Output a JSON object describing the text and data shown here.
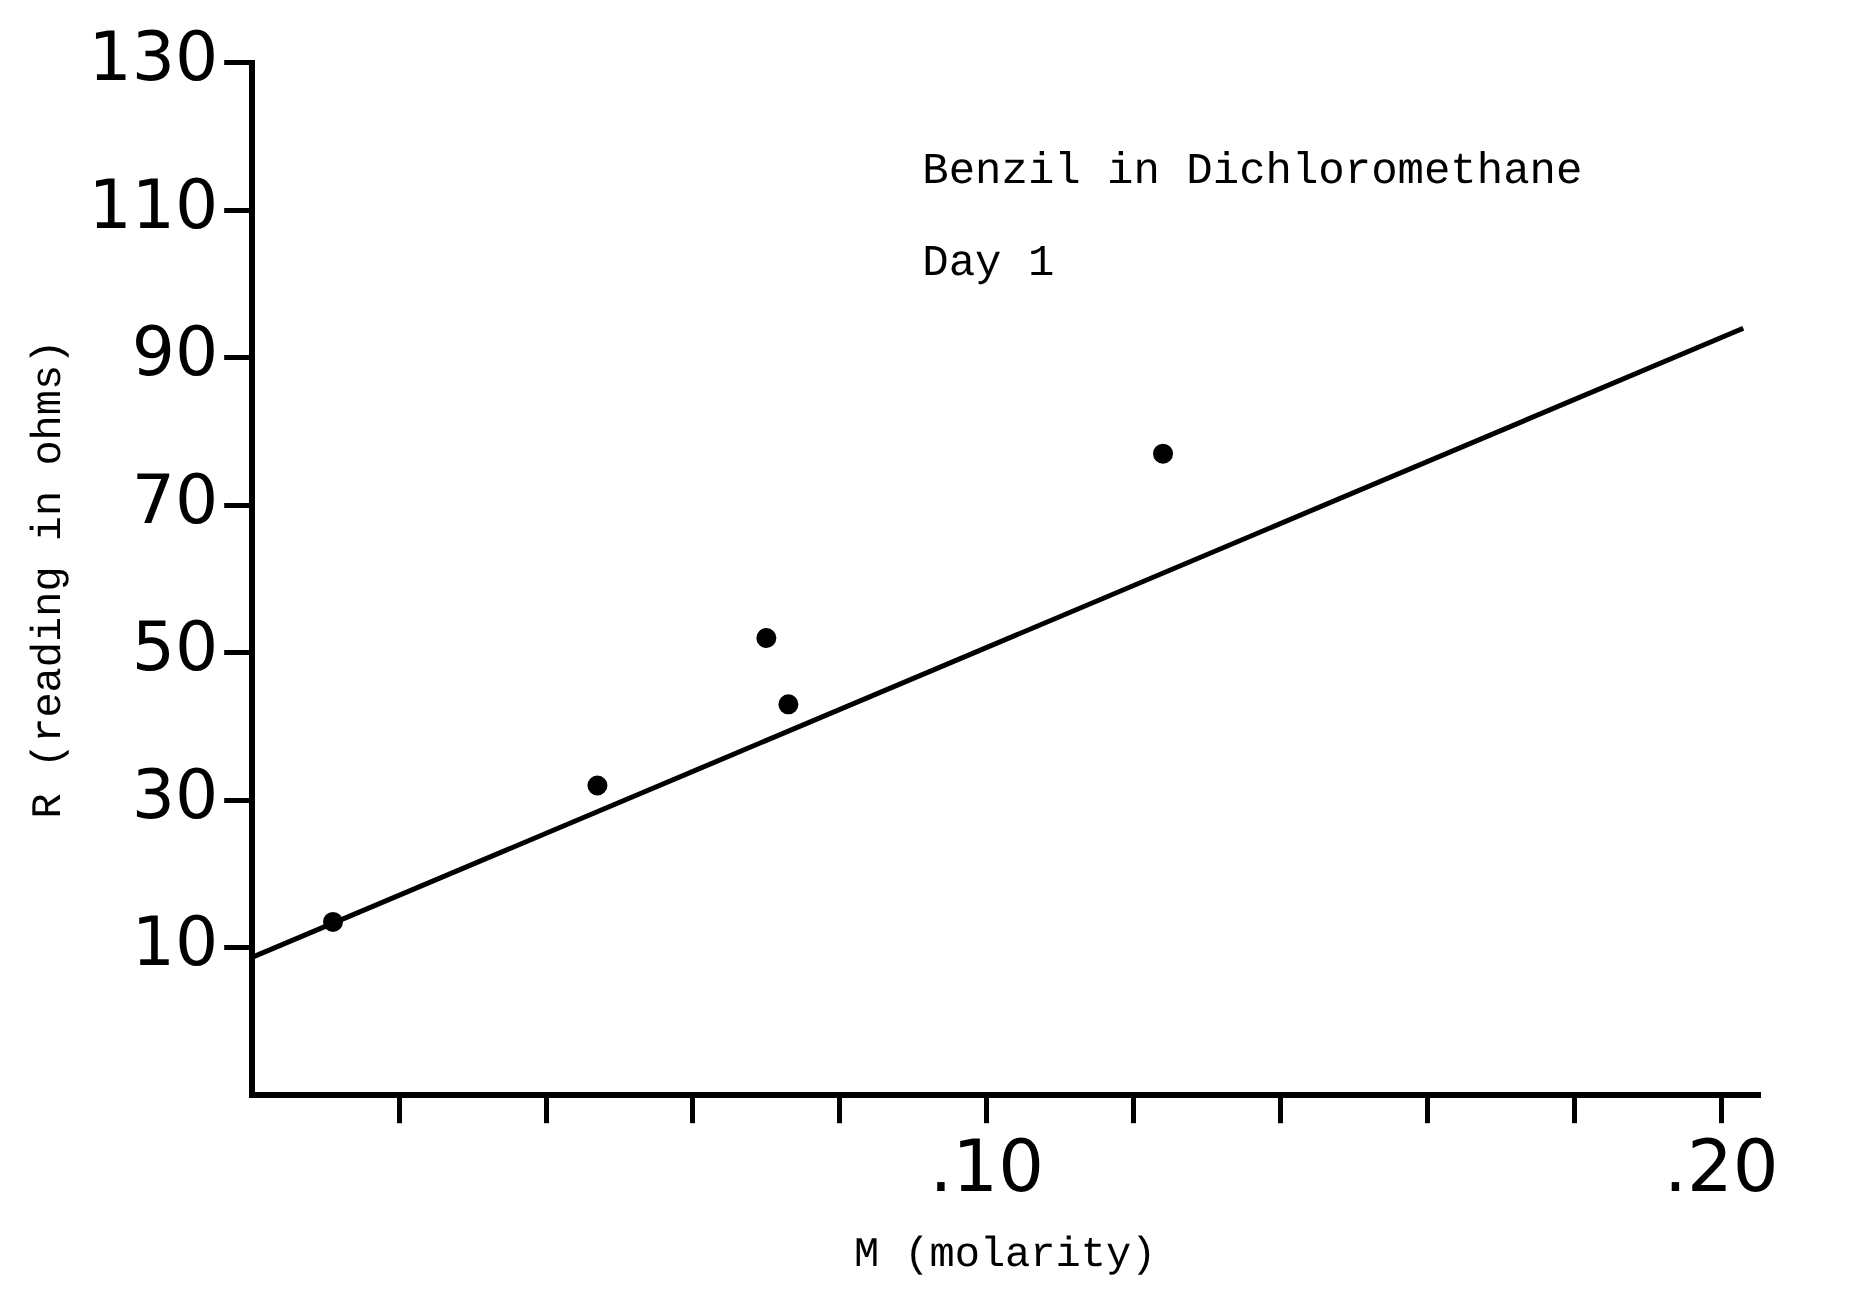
{
  "chart_data": {
    "type": "scatter",
    "xlabel": "M (molarity)",
    "ylabel": "R (reading in ohms)",
    "annotations": [
      "Benzil in Dichloromethane",
      "Day 1"
    ],
    "series": [
      {
        "color": "#000000",
        "marker": "circle",
        "x": [
          0.011,
          0.047,
          0.07,
          0.073,
          0.124
        ],
        "values": [
          13.5,
          32,
          52,
          43,
          77
        ]
      },
      {
        "type": "line",
        "color": "#000000",
        "marker": "none",
        "line_style": "solid",
        "x": [
          0,
          0.203
        ],
        "values": [
          8.7,
          94
        ]
      }
    ],
    "xlim": [
      0,
      0.205
    ],
    "ylim": [
      -10,
      130
    ],
    "xticks": [
      {
        "value": 0.02,
        "label": null
      },
      {
        "value": 0.04,
        "label": null
      },
      {
        "value": 0.06,
        "label": null
      },
      {
        "value": 0.08,
        "label": null
      },
      {
        "value": 0.1,
        "label": ".10"
      },
      {
        "value": 0.12,
        "label": null
      },
      {
        "value": 0.14,
        "label": null
      },
      {
        "value": 0.16,
        "label": null
      },
      {
        "value": 0.18,
        "label": null
      },
      {
        "value": 0.2,
        "label": ".20"
      }
    ],
    "yticks": [
      10,
      30,
      50,
      70,
      90,
      110,
      130
    ],
    "grid": false,
    "legend": false
  }
}
